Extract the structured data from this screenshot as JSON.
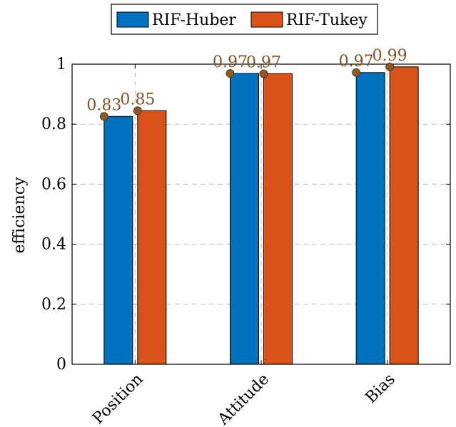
{
  "chart_data": {
    "type": "bar",
    "title": "",
    "xlabel": "",
    "ylabel": "efficiency",
    "categories": [
      "Position",
      "Attitude",
      "Bias"
    ],
    "series": [
      {
        "name": "RIF-Huber",
        "values": [
          0.826,
          0.969,
          0.972
        ],
        "labels": [
          "0.83",
          "0.97",
          "0.97"
        ],
        "color": "#0072BD"
      },
      {
        "name": "RIF-Tukey",
        "values": [
          0.845,
          0.968,
          0.991
        ],
        "labels": [
          "0.85",
          "0.97",
          "0.99"
        ],
        "color": "#D95319"
      }
    ],
    "ylim": [
      0,
      1
    ],
    "yticks": [
      0,
      0.2,
      0.4,
      0.6,
      0.8,
      1
    ],
    "ytick_labels": [
      "0",
      "0.2",
      "0.4",
      "0.6",
      "0.8",
      "1"
    ],
    "grid": true,
    "legend_position": "top-center",
    "marker_color": "#8B5A2B",
    "data_label_color": "#7B5427"
  }
}
